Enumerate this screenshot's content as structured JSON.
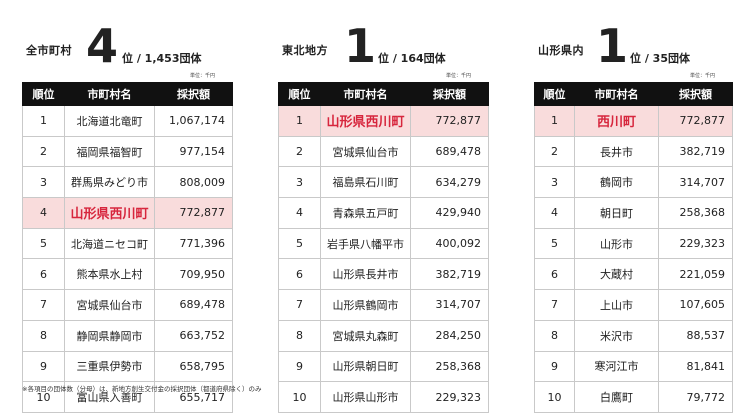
{
  "unit_label": "単位：千円",
  "footnote": "※各項目の団体数（分母）は、新地方創生交付金の採択団体（都道府県除く）のみ",
  "panels": [
    {
      "scope": "全市町村",
      "rank": "4",
      "suffix": "位 /  1,453団体",
      "headers": [
        "順位",
        "市町村名",
        "採択額"
      ],
      "rows": [
        {
          "rank": "1",
          "name": "北海道北竜町",
          "amount": "1,067,174"
        },
        {
          "rank": "2",
          "name": "福岡県福智町",
          "amount": "977,154"
        },
        {
          "rank": "3",
          "name": "群馬県みどり市",
          "amount": "808,009"
        },
        {
          "rank": "4",
          "name": "山形県西川町",
          "amount": "772,877",
          "highlight": true
        },
        {
          "rank": "5",
          "name": "北海道ニセコ町",
          "amount": "771,396"
        },
        {
          "rank": "6",
          "name": "熊本県水上村",
          "amount": "709,950"
        },
        {
          "rank": "7",
          "name": "宮城県仙台市",
          "amount": "689,478"
        },
        {
          "rank": "8",
          "name": "静岡県静岡市",
          "amount": "663,752"
        },
        {
          "rank": "9",
          "name": "三重県伊勢市",
          "amount": "658,795"
        },
        {
          "rank": "10",
          "name": "富山県入善町",
          "amount": "655,717"
        }
      ]
    },
    {
      "scope": "東北地方",
      "rank": "1",
      "suffix": "位 /  164団体",
      "headers": [
        "順位",
        "市町村名",
        "採択額"
      ],
      "rows": [
        {
          "rank": "1",
          "name": "山形県西川町",
          "amount": "772,877",
          "highlight": true
        },
        {
          "rank": "2",
          "name": "宮城県仙台市",
          "amount": "689,478"
        },
        {
          "rank": "3",
          "name": "福島県石川町",
          "amount": "634,279"
        },
        {
          "rank": "4",
          "name": "青森県五戸町",
          "amount": "429,940"
        },
        {
          "rank": "5",
          "name": "岩手県八幡平市",
          "amount": "400,092"
        },
        {
          "rank": "6",
          "name": "山形県長井市",
          "amount": "382,719"
        },
        {
          "rank": "7",
          "name": "山形県鶴岡市",
          "amount": "314,707"
        },
        {
          "rank": "8",
          "name": "宮城県丸森町",
          "amount": "284,250"
        },
        {
          "rank": "9",
          "name": "山形県朝日町",
          "amount": "258,368"
        },
        {
          "rank": "10",
          "name": "山形県山形市",
          "amount": "229,323"
        }
      ]
    },
    {
      "scope": "山形県内",
      "rank": "1",
      "suffix": "位 /  35団体",
      "headers": [
        "順位",
        "市町村名",
        "採択額"
      ],
      "rows": [
        {
          "rank": "1",
          "name": "西川町",
          "amount": "772,877",
          "highlight": true
        },
        {
          "rank": "2",
          "name": "長井市",
          "amount": "382,719"
        },
        {
          "rank": "3",
          "name": "鶴岡市",
          "amount": "314,707"
        },
        {
          "rank": "4",
          "name": "朝日町",
          "amount": "258,368"
        },
        {
          "rank": "5",
          "name": "山形市",
          "amount": "229,323"
        },
        {
          "rank": "6",
          "name": "大蔵村",
          "amount": "221,059"
        },
        {
          "rank": "7",
          "name": "上山市",
          "amount": "107,605"
        },
        {
          "rank": "8",
          "name": "米沢市",
          "amount": "88,537"
        },
        {
          "rank": "9",
          "name": "寒河江市",
          "amount": "81,841"
        },
        {
          "rank": "10",
          "name": "白鷹町",
          "amount": "79,772"
        }
      ]
    }
  ]
}
